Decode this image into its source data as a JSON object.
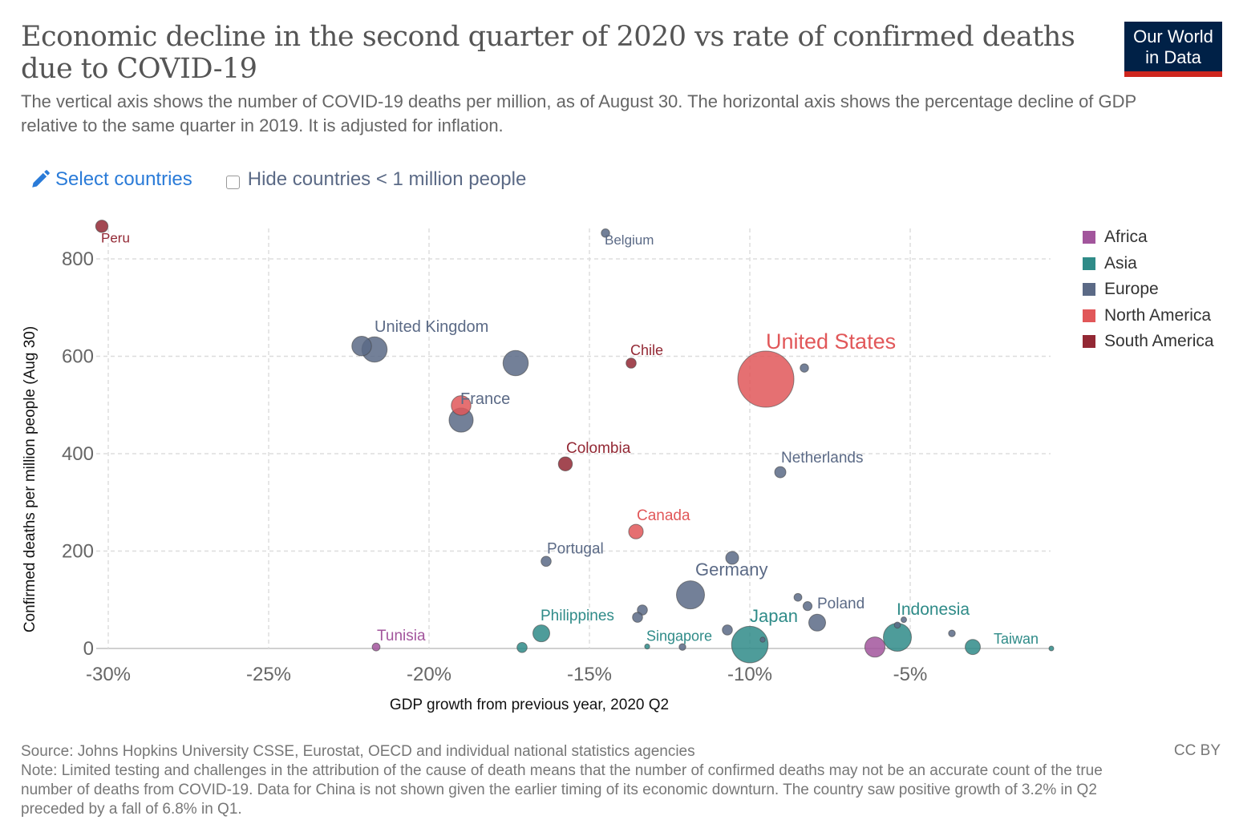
{
  "header": {
    "title": "Economic decline in the second quarter of 2020 vs rate of confirmed deaths due to COVID-19",
    "subtitle": "The vertical axis shows the number of COVID-19 deaths per million, as of August 30. The horizontal axis shows the percentage decline of GDP relative to the same quarter in 2019. It is adjusted for inflation.",
    "logo_line1": "Our World",
    "logo_line2": "in Data"
  },
  "controls": {
    "select_countries_label": "Select countries",
    "select_countries_icon": "pencil-icon",
    "hide_small_label": "Hide countries < 1 million people",
    "hide_small_checked": false
  },
  "colors": {
    "Africa": "#a2559c",
    "Asia": "#2f8b88",
    "Europe": "#5b6a86",
    "North America": "#e15759",
    "South America": "#932834",
    "logo_bg": "#002147",
    "logo_bar": "#ce261e",
    "link": "#2a7bd8"
  },
  "chart_data": {
    "type": "scatter",
    "title": "Economic decline in the second quarter of 2020 vs rate of confirmed deaths due to COVID-19",
    "xlabel": "GDP growth from previous year, 2020 Q2",
    "ylabel": "Confirmed deaths per million people (Aug 30)",
    "xlim": [
      -30,
      -0.6
    ],
    "ylim": [
      0,
      880
    ],
    "x_ticks": [
      -30,
      -25,
      -20,
      -15,
      -10,
      -5
    ],
    "x_tick_labels": [
      "-30%",
      "-25%",
      "-20%",
      "-15%",
      "-10%",
      "-5%"
    ],
    "y_ticks": [
      0,
      200,
      400,
      600,
      800
    ],
    "y_tick_labels": [
      "0",
      "200",
      "400",
      "600",
      "800"
    ],
    "grid": true,
    "legend_position": "right",
    "legend": [
      "Africa",
      "Asia",
      "Europe",
      "North America",
      "South America"
    ],
    "size_encoding": "population",
    "points": [
      {
        "label": "Peru",
        "continent": "South America",
        "x": -30.2,
        "y": 867,
        "size": 2.2,
        "show_label": true
      },
      {
        "label": "Belgium",
        "continent": "Europe",
        "x": -14.5,
        "y": 853,
        "size": 1.5,
        "show_label": true
      },
      {
        "label": "",
        "continent": "Europe",
        "x": -22.1,
        "y": 621,
        "size": 3.5,
        "show_label": false
      },
      {
        "label": "United Kingdom",
        "continent": "Europe",
        "x": -21.7,
        "y": 614,
        "size": 4.5,
        "show_label": true
      },
      {
        "label": "",
        "continent": "Europe",
        "x": -17.3,
        "y": 586,
        "size": 4.5,
        "show_label": false
      },
      {
        "label": "",
        "continent": "North America",
        "x": -19.0,
        "y": 499,
        "size": 3.5,
        "show_label": false
      },
      {
        "label": "France",
        "continent": "Europe",
        "x": -19.0,
        "y": 469,
        "size": 4.3,
        "show_label": true
      },
      {
        "label": "Chile",
        "continent": "South America",
        "x": -13.7,
        "y": 586,
        "size": 1.8,
        "show_label": true
      },
      {
        "label": "United States",
        "continent": "North America",
        "x": -9.5,
        "y": 553,
        "size": 10,
        "show_label": true
      },
      {
        "label": "",
        "continent": "Europe",
        "x": -8.3,
        "y": 576,
        "size": 1.5,
        "show_label": false
      },
      {
        "label": "Colombia",
        "continent": "South America",
        "x": -15.75,
        "y": 379,
        "size": 2.5,
        "show_label": true
      },
      {
        "label": "Netherlands",
        "continent": "Europe",
        "x": -9.05,
        "y": 362,
        "size": 2.0,
        "show_label": true
      },
      {
        "label": "Canada",
        "continent": "North America",
        "x": -13.55,
        "y": 240,
        "size": 2.6,
        "show_label": true
      },
      {
        "label": "Portugal",
        "continent": "Europe",
        "x": -16.35,
        "y": 179,
        "size": 1.8,
        "show_label": true
      },
      {
        "label": "",
        "continent": "Europe",
        "x": -10.55,
        "y": 186,
        "size": 2.3,
        "show_label": false
      },
      {
        "label": "Germany",
        "continent": "Europe",
        "x": -11.85,
        "y": 110,
        "size": 5.0,
        "show_label": true
      },
      {
        "label": "",
        "continent": "Europe",
        "x": -13.35,
        "y": 79,
        "size": 1.8,
        "show_label": false
      },
      {
        "label": "",
        "continent": "Europe",
        "x": -13.5,
        "y": 64,
        "size": 1.8,
        "show_label": false
      },
      {
        "label": "Philippines",
        "continent": "Asia",
        "x": -16.5,
        "y": 31,
        "size": 3.0,
        "show_label": true
      },
      {
        "label": "",
        "continent": "Asia",
        "x": -17.1,
        "y": 2,
        "size": 1.8,
        "show_label": false
      },
      {
        "label": "Tunisia",
        "continent": "Africa",
        "x": -21.65,
        "y": 3,
        "size": 1.4,
        "show_label": true
      },
      {
        "label": "Singapore",
        "continent": "Asia",
        "x": -13.2,
        "y": 4,
        "size": 0.9,
        "show_label": true
      },
      {
        "label": "",
        "continent": "Europe",
        "x": -12.1,
        "y": 3,
        "size": 1.2,
        "show_label": false
      },
      {
        "label": "",
        "continent": "Europe",
        "x": -10.7,
        "y": 38,
        "size": 1.8,
        "show_label": false
      },
      {
        "label": "Japan",
        "continent": "Asia",
        "x": -10.0,
        "y": 8,
        "size": 6.5,
        "show_label": true
      },
      {
        "label": "",
        "continent": "Europe",
        "x": -9.6,
        "y": 18,
        "size": 0.9,
        "show_label": false
      },
      {
        "label": "",
        "continent": "Europe",
        "x": -8.5,
        "y": 105,
        "size": 1.4,
        "show_label": false
      },
      {
        "label": "",
        "continent": "Europe",
        "x": -8.2,
        "y": 87,
        "size": 1.6,
        "show_label": false
      },
      {
        "label": "Poland",
        "continent": "Europe",
        "x": -7.9,
        "y": 53,
        "size": 3.0,
        "show_label": true
      },
      {
        "label": "",
        "continent": "Africa",
        "x": -6.1,
        "y": 3,
        "size": 3.6,
        "show_label": false
      },
      {
        "label": "Indonesia",
        "continent": "Asia",
        "x": -5.4,
        "y": 23,
        "size": 5.0,
        "show_label": true
      },
      {
        "label": "",
        "continent": "Europe",
        "x": -5.4,
        "y": 48,
        "size": 1.1,
        "show_label": false
      },
      {
        "label": "",
        "continent": "Europe",
        "x": -5.2,
        "y": 59,
        "size": 1.0,
        "show_label": false
      },
      {
        "label": "",
        "continent": "Europe",
        "x": -3.7,
        "y": 31,
        "size": 1.2,
        "show_label": false
      },
      {
        "label": "Taiwan",
        "continent": "Asia",
        "x": -3.05,
        "y": 3,
        "size": 2.7,
        "show_label": true
      },
      {
        "label": "",
        "continent": "Asia",
        "x": -0.6,
        "y": 0,
        "size": 0.6,
        "show_label": false
      }
    ]
  },
  "footer": {
    "source": "Source: Johns Hopkins University CSSE, Eurostat, OECD and individual national statistics agencies",
    "note": "Note: Limited testing and challenges in the attribution of the cause of death means that the number of confirmed deaths may not be an accurate count of the true number of deaths from COVID-19. Data for China is not shown given the earlier timing of its economic downturn. The country saw positive growth of 3.2% in Q2 preceded by a fall of 6.8% in Q1.",
    "license": "CC BY"
  }
}
